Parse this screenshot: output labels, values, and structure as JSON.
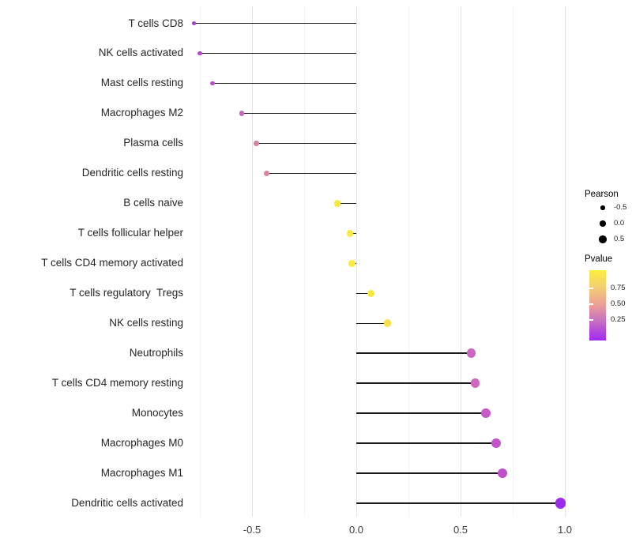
{
  "chart_data": {
    "type": "lollipop",
    "title": "",
    "xlabel": "",
    "ylabel": "",
    "x_axis": {
      "major_ticks": [
        -0.5,
        0.0,
        0.5,
        1.0
      ],
      "tick_labels": [
        "-0.5",
        "0.0",
        "0.5",
        "1.0"
      ],
      "minor_ticks": [
        -0.75,
        -0.25,
        0.25,
        0.75
      ],
      "range": [
        -0.87,
        1.07
      ],
      "grid": "vertical-only"
    },
    "points": [
      {
        "label": "T cells CD8",
        "pearson": -0.78,
        "color": "#A737D9"
      },
      {
        "label": "NK cells activated",
        "pearson": -0.75,
        "color": "#B046CE"
      },
      {
        "label": "Mast cells resting",
        "pearson": -0.69,
        "color": "#B550CB"
      },
      {
        "label": "Macrophages M2",
        "pearson": -0.55,
        "color": "#C668BA"
      },
      {
        "label": "Plasma cells",
        "pearson": -0.48,
        "color": "#DC80A4"
      },
      {
        "label": "Dendritic cells resting",
        "pearson": -0.43,
        "color": "#DD83A5"
      },
      {
        "label": "B cells naive",
        "pearson": -0.09,
        "color": "#FBEA3E"
      },
      {
        "label": "T cells follicular helper",
        "pearson": -0.03,
        "color": "#FCEC3C"
      },
      {
        "label": "T cells CD4 memory activated",
        "pearson": -0.02,
        "color": "#FCEC3C"
      },
      {
        "label": "T cells regulatory  Tregs",
        "pearson": 0.07,
        "color": "#FAE83F"
      },
      {
        "label": "NK cells resting",
        "pearson": 0.15,
        "color": "#F6E149"
      },
      {
        "label": "Neutrophils",
        "pearson": 0.55,
        "color": "#CC66C0"
      },
      {
        "label": "T cells CD4 memory resting",
        "pearson": 0.57,
        "color": "#CD67BF"
      },
      {
        "label": "Monocytes",
        "pearson": 0.62,
        "color": "#C75BC5"
      },
      {
        "label": "Macrophages M0",
        "pearson": 0.67,
        "color": "#C253CA"
      },
      {
        "label": "Macrophages M1",
        "pearson": 0.7,
        "color": "#C04FCB"
      },
      {
        "label": "Dendritic cells activated",
        "pearson": 0.98,
        "color": "#9C2BEE"
      }
    ],
    "legend": {
      "size": {
        "title": "Pearson",
        "entries": [
          {
            "label": "-0.5",
            "value": -0.5
          },
          {
            "label": "0.0",
            "value": 0.0
          },
          {
            "label": "0.5",
            "value": 0.5
          }
        ],
        "swatch_color": "#000000"
      },
      "colorbar": {
        "title": "Pvalue",
        "tick_labels": [
          "0.75",
          "0.50",
          "0.25"
        ],
        "gradient_stops_top_to_bottom": [
          "#FCEE3F",
          "#F2CD74",
          "#EC9D97",
          "#C368C8",
          "#A228F0"
        ]
      }
    },
    "styles": {
      "segment_color": "#1a1a1a",
      "grid_major_color": "#e4e4e4",
      "grid_minor_color": "#f2f2f2",
      "axis_text_color": "#404040",
      "background": "#ffffff"
    }
  }
}
